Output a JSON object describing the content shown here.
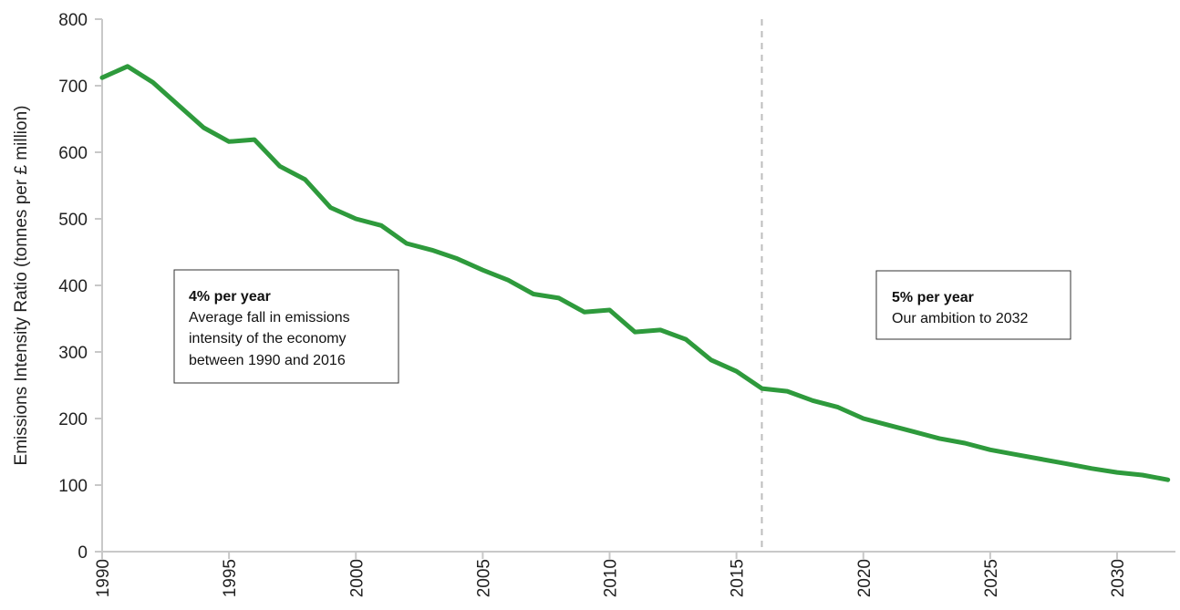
{
  "chart_data": {
    "type": "line",
    "ylabel": "Emissions Intensity Ratio (tonnes per £ million)",
    "xlabel": "",
    "ylim": [
      0,
      800
    ],
    "xlim": [
      1990,
      2032.3
    ],
    "yticks": [
      0,
      100,
      200,
      300,
      400,
      500,
      600,
      700,
      800
    ],
    "xticks": [
      1990,
      1995,
      2000,
      2005,
      2010,
      2015,
      2020,
      2025,
      2030
    ],
    "grid": false,
    "line_color": "#2e9a3c",
    "marker_year": 2016,
    "series": [
      {
        "x": [
          1990,
          1991,
          1992,
          1993,
          1994,
          1995,
          1996,
          1997,
          1998,
          1999,
          2000,
          2001,
          2002,
          2003,
          2004,
          2005,
          2006,
          2007,
          2008,
          2009,
          2010,
          2011,
          2012,
          2013,
          2014,
          2015,
          2016,
          2017,
          2018,
          2019,
          2020,
          2021,
          2022,
          2023,
          2024,
          2025,
          2026,
          2027,
          2028,
          2029,
          2030,
          2031,
          2032
        ],
        "values": [
          712,
          729,
          705,
          671,
          637,
          616,
          619,
          579,
          559,
          517,
          500,
          490,
          463,
          453,
          440,
          423,
          408,
          387,
          381,
          360,
          363,
          330,
          333,
          319,
          288,
          271,
          245,
          241,
          227,
          217,
          200,
          190,
          180,
          170,
          163,
          153,
          146,
          139,
          132,
          125,
          119,
          115,
          108
        ]
      }
    ],
    "annotations": [
      {
        "bold": "4% per year",
        "lines": [
          "Average fall in emissions",
          "intensity of the economy",
          "between 1990 and 2016"
        ]
      },
      {
        "bold": "5% per year",
        "lines": [
          "Our ambition to 2032"
        ]
      }
    ]
  }
}
